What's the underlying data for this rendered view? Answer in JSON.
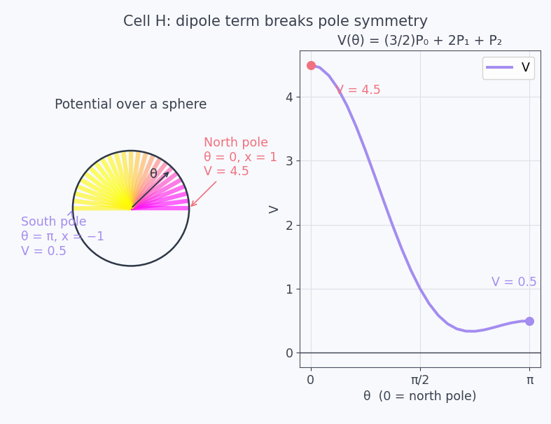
{
  "title": "Cell H: dipole term breaks pole symmetry",
  "diagram": {
    "title": "Potential over a sphere",
    "angle_label": "θ",
    "north_pole": {
      "lines": [
        "North pole",
        "θ = 0, x = 1",
        "V = 4.5"
      ],
      "color": "#f0717f"
    },
    "south_pole": {
      "lines": [
        "South pole",
        "θ = π, x = −1",
        "V = 0.5"
      ],
      "color": "#a48cf0"
    }
  },
  "chart_data": {
    "type": "line",
    "title": "V(θ) = (3/2)P₀ + 2P₁ + P₂",
    "x_label": "θ  (0 = north pole)",
    "y_label": "V",
    "x": [
      0,
      0.1309,
      0.2618,
      0.3927,
      0.5236,
      0.6545,
      0.7854,
      0.9163,
      1.0472,
      1.1781,
      1.309,
      1.4399,
      1.5708,
      1.7017,
      1.8326,
      1.9635,
      2.0944,
      2.2253,
      2.3562,
      2.4871,
      2.618,
      2.7489,
      2.8798,
      3.0107,
      3.1416
    ],
    "series": [
      {
        "name": "V",
        "color": "#a48cf0",
        "values": [
          4.5,
          4.4573,
          4.3314,
          4.1281,
          3.8571,
          3.5308,
          3.1642,
          2.7734,
          2.375,
          1.985,
          1.6181,
          1.2866,
          1.0,
          0.7645,
          0.5828,
          0.4543,
          0.375,
          0.3384,
          0.3358,
          0.3574,
          0.3929,
          0.4326,
          0.4677,
          0.4916,
          0.5
        ]
      }
    ],
    "xlim": [
      -0.157,
      3.299
    ],
    "xticks": [
      0,
      {
        "value": 1.5708,
        "label": "π/2"
      },
      {
        "value": 3.1416,
        "label": "π"
      }
    ],
    "ylim": [
      -0.225,
      4.725
    ],
    "yticks": [
      0,
      1,
      2,
      3,
      4
    ],
    "grid": true,
    "legend": "upper right",
    "annotations": [
      {
        "text": "V = 4.5",
        "color": "#f0717f"
      },
      {
        "text": "V = 0.5",
        "color": "#a48cf0"
      }
    ]
  }
}
